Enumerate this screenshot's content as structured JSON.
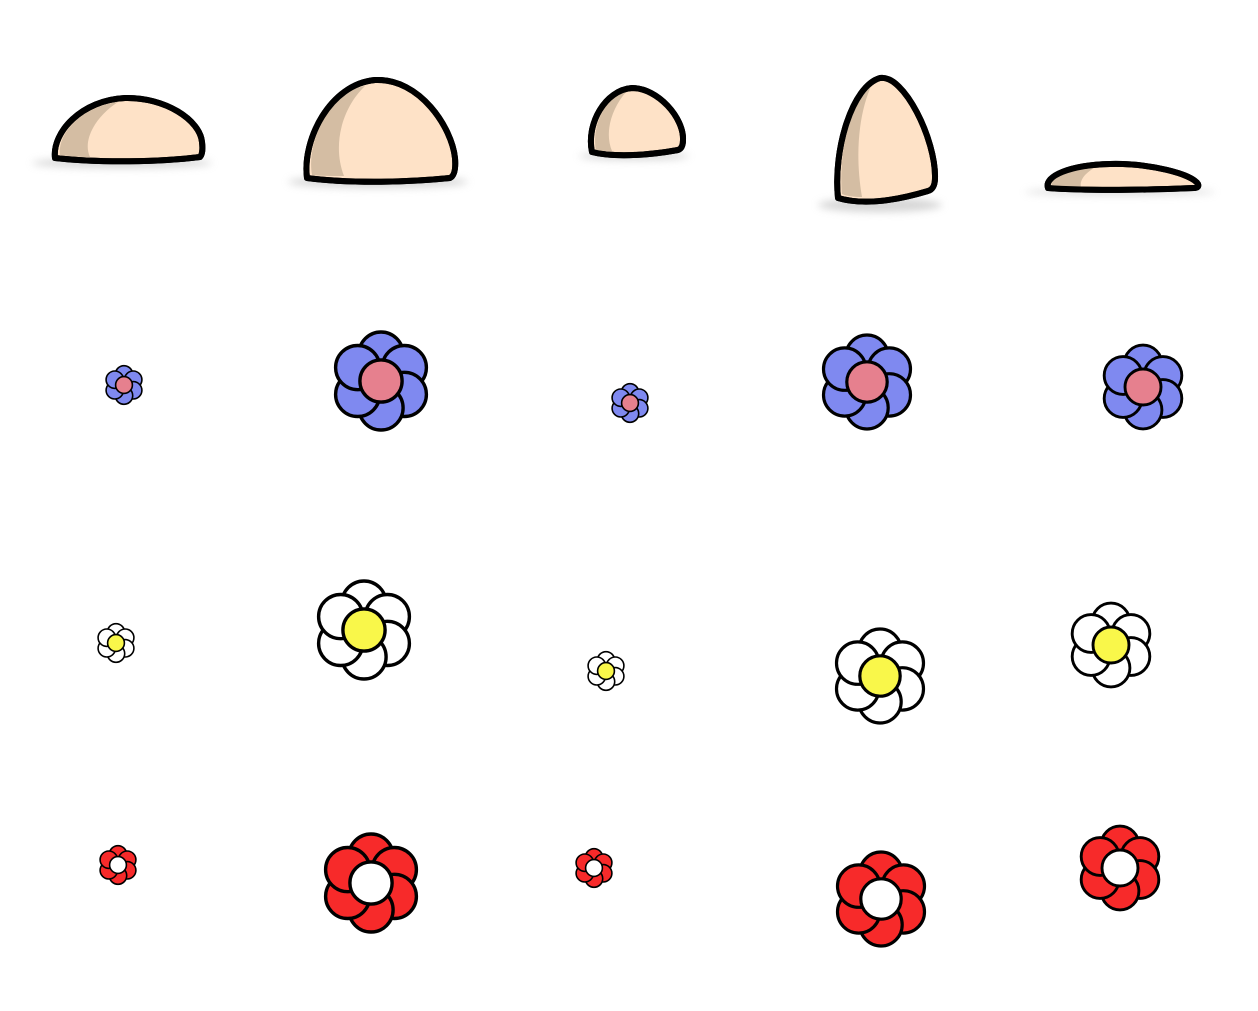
{
  "colors": {
    "outline": "#000000",
    "rock_light": "#fee2c7",
    "rock_dark": "#d4bda3",
    "rock_shadow": "#cfcfcf",
    "flower_blue_petal": "#7f89f0",
    "flower_blue_center": "#e6808e",
    "flower_white_petal": "#ffffff",
    "flower_white_center": "#f9f74a",
    "flower_red_petal": "#f72a2a",
    "flower_red_center": "#ffffff"
  },
  "sprites": {
    "rocks": [
      {
        "name": "rock-1",
        "icon": "rock-icon"
      },
      {
        "name": "rock-2",
        "icon": "rock-icon"
      },
      {
        "name": "rock-3",
        "icon": "rock-icon"
      },
      {
        "name": "rock-4",
        "icon": "rock-icon"
      },
      {
        "name": "rock-5",
        "icon": "rock-icon"
      }
    ],
    "flower_rows": [
      {
        "variant": "blue",
        "icon": "blue-flower-icon",
        "count": 5
      },
      {
        "variant": "white",
        "icon": "white-flower-icon",
        "count": 5
      },
      {
        "variant": "red",
        "icon": "red-flower-icon",
        "count": 5
      }
    ]
  }
}
